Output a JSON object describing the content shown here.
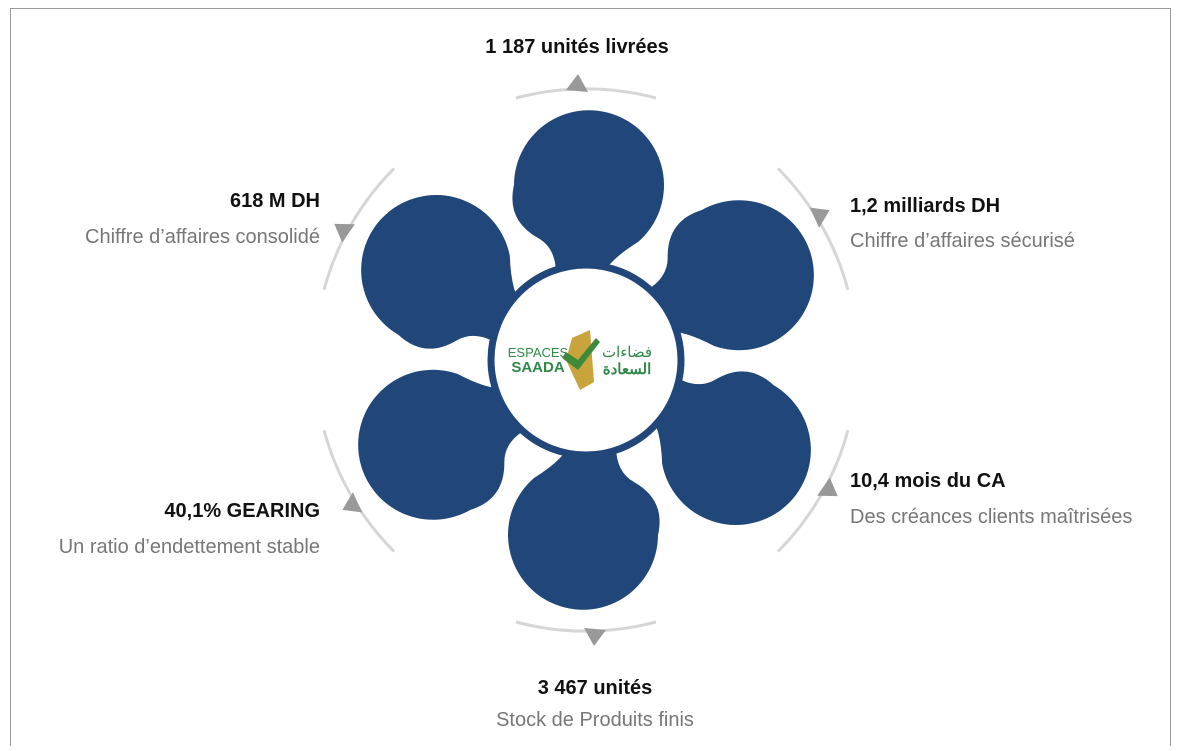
{
  "items": [
    {
      "value": "1 187 unités livrées"
    },
    {
      "value": "1,2 milliards DH",
      "caption": "Chiffre d’affaires sécurisé"
    },
    {
      "value": "10,4 mois du CA",
      "caption": "Des créances clients maîtrisées"
    },
    {
      "value": "3 467 unités",
      "caption": "Stock de Produits finis"
    },
    {
      "value": "40,1% GEARING",
      "caption": "Un ratio d’endettement stable"
    },
    {
      "value": "618 M DH",
      "caption": "Chiffre d’affaires consolidé"
    }
  ],
  "logo": {
    "latin": [
      "ESPACES",
      "SAADA"
    ],
    "arabic": [
      "فضاءات",
      "السعادة"
    ]
  }
}
